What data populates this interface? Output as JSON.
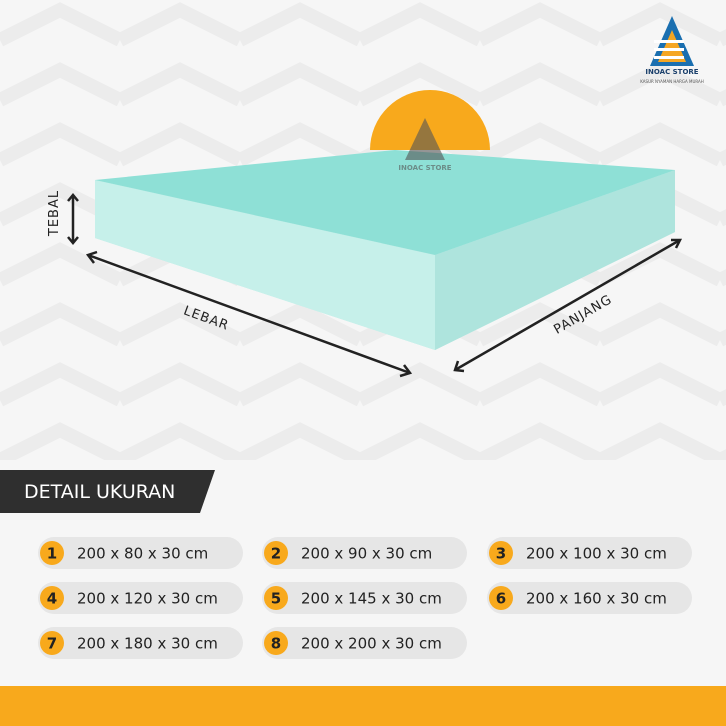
{
  "logo": {
    "name": "INOAC STORE",
    "tagline": "KASUR NYAMAN HARGA MURAH"
  },
  "labels": {
    "thickness": "TEBAL",
    "width": "LEBAR",
    "length": "PANJANG"
  },
  "detail": {
    "title": "DETAIL UKURAN",
    "items": [
      {
        "number": "1",
        "size": "200 x 80 x 30 cm"
      },
      {
        "number": "2",
        "size": "200 x 90 x 30 cm"
      },
      {
        "number": "3",
        "size": "200 x 100 x 30 cm"
      },
      {
        "number": "4",
        "size": "200 x 120 x 30 cm"
      },
      {
        "number": "5",
        "size": "200 x 145 x 30 cm"
      },
      {
        "number": "6",
        "size": "200 x 160 x 30 cm"
      },
      {
        "number": "7",
        "size": "200 x 180 x 30 cm"
      },
      {
        "number": "8",
        "size": "200 x 200 x 30 cm"
      }
    ]
  }
}
